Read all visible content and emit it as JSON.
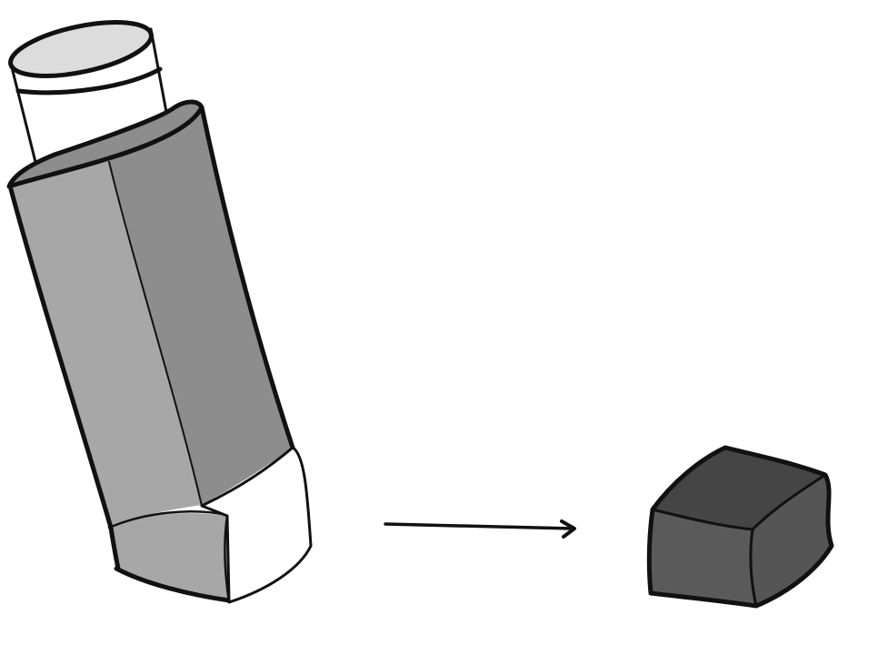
{
  "illustration": {
    "subject": "inhaler",
    "parts": [
      "canister-icon",
      "inhaler-body-icon",
      "mouthpiece-icon",
      "arrow-icon",
      "mouthpiece-cap-icon"
    ]
  },
  "colors": {
    "background": "#ffffff",
    "outline": "#111111",
    "body_light": "#a7a7a7",
    "body_dark": "#8d8d8d",
    "canister_top": "#dcdcdc",
    "mouthpiece": "#ffffff",
    "cap_front": "#5a5a5a",
    "cap_top": "#454545",
    "arrow": "#2b2b2b"
  }
}
